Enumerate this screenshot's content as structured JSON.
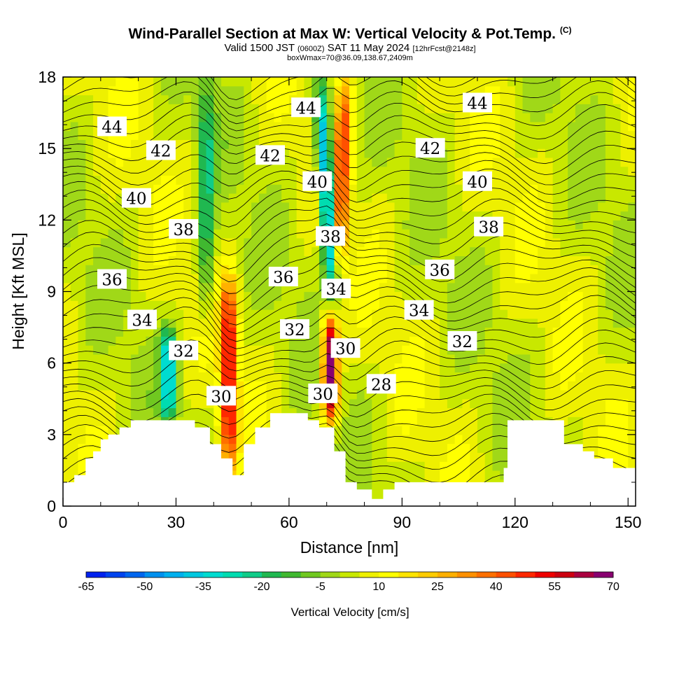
{
  "titles": {
    "main": "Wind-Parallel Section at Max W: Vertical Velocity & Pot.Temp.",
    "copyright": "(C)",
    "valid_prefix": "Valid 1500 JST",
    "valid_utc": "(0600Z)",
    "valid_date": "SAT 11 May 2024",
    "forecast": "[12hrFcst@2148z]",
    "box_info": "boxWmax=70@36.09,138.67,2409m"
  },
  "chart_data": {
    "type": "heatmap",
    "xlabel": "Distance [nm]",
    "ylabel": "Height [Kft MSL]",
    "xlim": [
      0,
      152
    ],
    "ylim": [
      0,
      18
    ],
    "xticks": [
      0,
      30,
      60,
      90,
      120,
      150
    ],
    "yticks": [
      0,
      3,
      6,
      9,
      12,
      15,
      18
    ],
    "terrain_kft": [
      [
        0,
        1.0
      ],
      [
        3,
        1.0
      ],
      [
        3,
        1.3
      ],
      [
        6,
        1.3
      ],
      [
        6,
        2.0
      ],
      [
        8,
        2.0
      ],
      [
        8,
        2.3
      ],
      [
        10,
        2.3
      ],
      [
        10,
        2.8
      ],
      [
        12,
        2.8
      ],
      [
        12,
        3.0
      ],
      [
        15,
        3.0
      ],
      [
        15,
        3.3
      ],
      [
        18,
        3.3
      ],
      [
        18,
        3.6
      ],
      [
        35,
        3.6
      ],
      [
        35,
        3.3
      ],
      [
        39,
        3.3
      ],
      [
        39,
        2.6
      ],
      [
        42,
        2.6
      ],
      [
        42,
        2.0
      ],
      [
        45,
        2.0
      ],
      [
        45,
        1.3
      ],
      [
        48,
        1.3
      ],
      [
        48,
        2.6
      ],
      [
        51,
        2.6
      ],
      [
        51,
        3.3
      ],
      [
        55,
        3.3
      ],
      [
        55,
        3.9
      ],
      [
        65,
        3.9
      ],
      [
        65,
        3.6
      ],
      [
        68,
        3.6
      ],
      [
        68,
        3.3
      ],
      [
        72,
        3.3
      ],
      [
        72,
        2.3
      ],
      [
        75,
        2.3
      ],
      [
        75,
        1.0
      ],
      [
        78,
        1.0
      ],
      [
        78,
        0.7
      ],
      [
        82,
        0.7
      ],
      [
        82,
        0.3
      ],
      [
        85,
        0.3
      ],
      [
        85,
        0.7
      ],
      [
        88,
        0.7
      ],
      [
        88,
        1.0
      ],
      [
        117,
        1.0
      ],
      [
        117,
        1.6
      ],
      [
        118,
        1.6
      ],
      [
        118,
        3.6
      ],
      [
        133,
        3.6
      ],
      [
        133,
        2.6
      ],
      [
        138,
        2.6
      ],
      [
        138,
        2.3
      ],
      [
        141,
        2.3
      ],
      [
        141,
        2.0
      ],
      [
        146,
        2.0
      ],
      [
        146,
        1.6
      ],
      [
        152,
        1.6
      ]
    ],
    "updraft_cores": [
      {
        "x": 44,
        "y_from": 1.5,
        "y_to": 9.5,
        "w_cms": 55
      },
      {
        "x": 71,
        "y_from": 3.5,
        "y_to": 8.0,
        "w_cms": 70
      },
      {
        "x": 74,
        "y_from": 10.0,
        "y_to": 18.0,
        "w_cms": 45
      }
    ],
    "downdraft_cores": [
      {
        "x": 28,
        "y_from": 3.6,
        "y_to": 7.5,
        "w_cms": -35
      },
      {
        "x": 70,
        "y_from": 9.0,
        "y_to": 17.5,
        "w_cms": -50
      },
      {
        "x": 38,
        "y_from": 8.0,
        "y_to": 18.0,
        "w_cms": -20
      }
    ],
    "contour_labels": [
      {
        "text": "44",
        "x": 13,
        "y": 15.9
      },
      {
        "text": "42",
        "x": 26,
        "y": 14.9
      },
      {
        "text": "40",
        "x": 19.5,
        "y": 12.9
      },
      {
        "text": "38",
        "x": 32,
        "y": 11.6
      },
      {
        "text": "36",
        "x": 13,
        "y": 9.5
      },
      {
        "text": "34",
        "x": 21,
        "y": 7.8
      },
      {
        "text": "32",
        "x": 32,
        "y": 6.5
      },
      {
        "text": "30",
        "x": 42,
        "y": 4.6
      },
      {
        "text": "44",
        "x": 64.5,
        "y": 16.7
      },
      {
        "text": "42",
        "x": 55,
        "y": 14.7
      },
      {
        "text": "40",
        "x": 67.5,
        "y": 13.6
      },
      {
        "text": "38",
        "x": 71,
        "y": 11.3
      },
      {
        "text": "36",
        "x": 58.5,
        "y": 9.6
      },
      {
        "text": "34",
        "x": 72.5,
        "y": 9.1
      },
      {
        "text": "32",
        "x": 61.5,
        "y": 7.4
      },
      {
        "text": "30",
        "x": 75,
        "y": 6.6
      },
      {
        "text": "30",
        "x": 69,
        "y": 4.7
      },
      {
        "text": "28",
        "x": 84.5,
        "y": 5.1
      },
      {
        "text": "44",
        "x": 110,
        "y": 16.9
      },
      {
        "text": "42",
        "x": 97.5,
        "y": 15.0
      },
      {
        "text": "40",
        "x": 110,
        "y": 13.6
      },
      {
        "text": "38",
        "x": 113,
        "y": 11.7
      },
      {
        "text": "36",
        "x": 100,
        "y": 9.9
      },
      {
        "text": "34",
        "x": 94.5,
        "y": 8.2
      },
      {
        "text": "32",
        "x": 106,
        "y": 6.9
      }
    ],
    "colorbar": {
      "title": "Vertical Velocity [cm/s]",
      "tick_labels": [
        "-65",
        "-50",
        "-35",
        "-20",
        "-5",
        "10",
        "25",
        "40",
        "55",
        "70"
      ],
      "levels": [
        -65,
        -60,
        -55,
        -50,
        -45,
        -40,
        -35,
        -30,
        -25,
        -20,
        -15,
        -10,
        -5,
        0,
        5,
        10,
        15,
        20,
        25,
        30,
        35,
        40,
        45,
        50,
        55,
        60,
        65,
        70
      ],
      "colors": [
        "#0022ee",
        "#0044ee",
        "#0066ee",
        "#0090ee",
        "#00b0ee",
        "#00c8e0",
        "#00dcd0",
        "#00dcb0",
        "#10cc88",
        "#20b850",
        "#40b830",
        "#70c820",
        "#a0d818",
        "#c8e800",
        "#eef000",
        "#ffff00",
        "#ffe400",
        "#ffcc00",
        "#ffb000",
        "#ff9000",
        "#ff7000",
        "#ff5000",
        "#ff2800",
        "#ee0000",
        "#cc0010",
        "#aa0040",
        "#880070"
      ]
    }
  }
}
